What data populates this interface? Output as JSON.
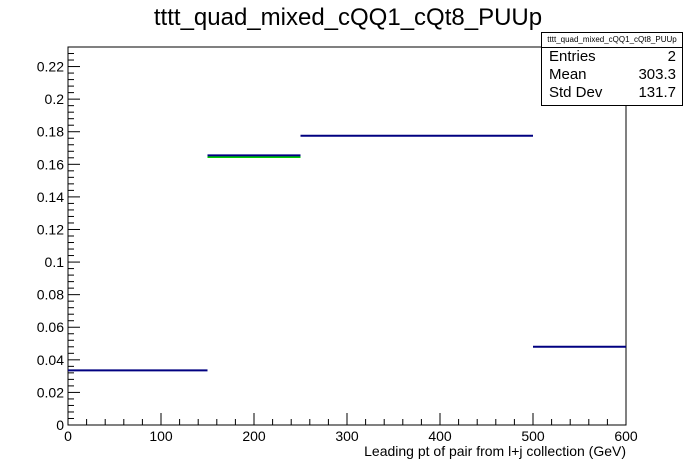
{
  "chart_data": {
    "type": "bar",
    "title": "tttt_quad_mixed_cQQ1_cQt8_PUUp",
    "xlabel": "Leading pt of pair from l+j collection (GeV)",
    "ylabel": "",
    "xlim": [
      0,
      600
    ],
    "ylim": [
      0,
      0.232
    ],
    "xticks": [
      "0",
      "100",
      "200",
      "300",
      "400",
      "500",
      "600"
    ],
    "yticks": [
      "0",
      "0.02",
      "0.04",
      "0.06",
      "0.08",
      "0.1",
      "0.12",
      "0.14",
      "0.16",
      "0.18",
      "0.2",
      "0.22"
    ],
    "bins": [
      {
        "x0": 0,
        "x1": 150,
        "value": 0.0335
      },
      {
        "x0": 150,
        "x1": 250,
        "value": 0.1655
      },
      {
        "x0": 250,
        "x1": 500,
        "value": 0.1775
      },
      {
        "x0": 500,
        "x1": 600,
        "value": 0.048
      }
    ],
    "overlay_bins": [
      {
        "x0": 150,
        "x1": 250,
        "value": 0.1645,
        "color": "#00cc00"
      }
    ],
    "line_color": "#000080",
    "grid": false,
    "legend": "top-right"
  },
  "stats_box": {
    "name": "tttt_quad_mixed_cQQ1_cQt8_PUUp",
    "entries_label": "Entries",
    "entries": "2",
    "mean_label": "Mean",
    "mean": "303.3",
    "stddev_label": "Std Dev",
    "stddev": "131.7"
  }
}
